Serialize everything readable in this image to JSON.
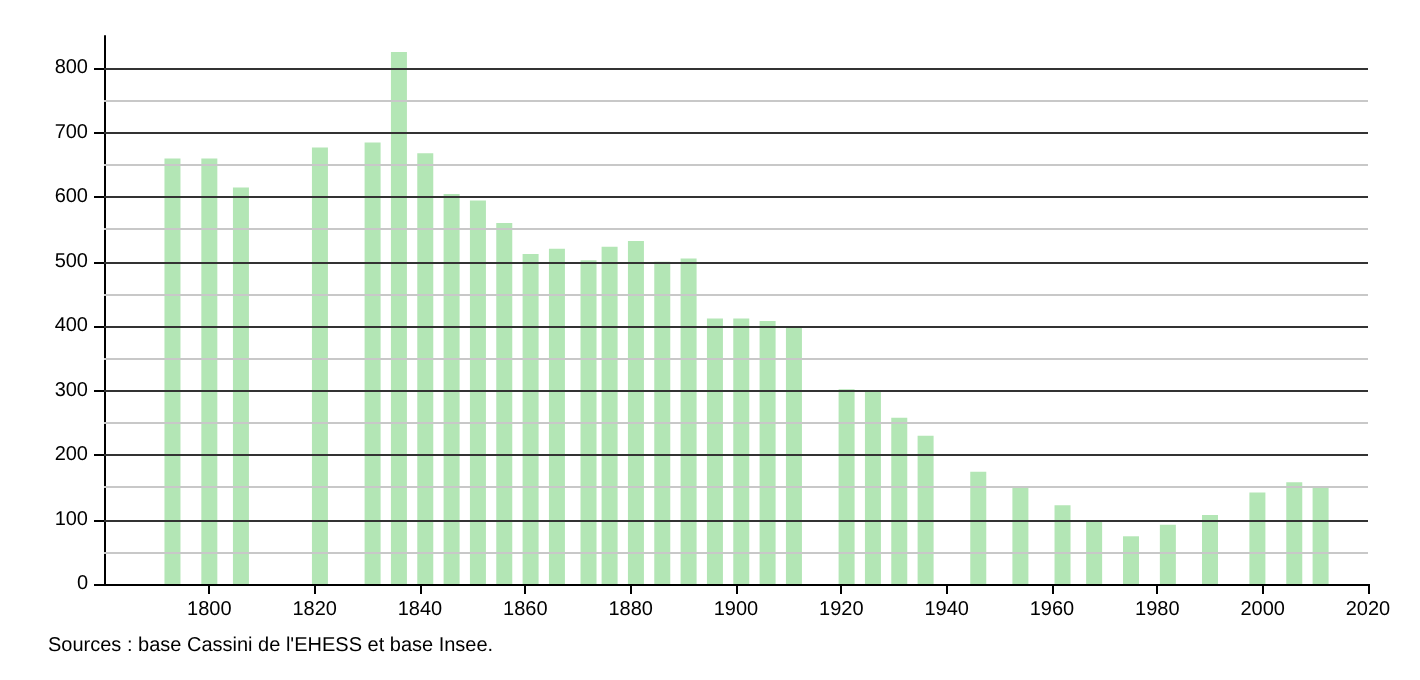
{
  "chart_data": {
    "type": "bar",
    "x": [
      1793,
      1800,
      1806,
      1821,
      1831,
      1836,
      1841,
      1846,
      1851,
      1856,
      1861,
      1866,
      1872,
      1876,
      1881,
      1886,
      1891,
      1896,
      1901,
      1906,
      1911,
      1921,
      1926,
      1931,
      1936,
      1946,
      1954,
      1962,
      1968,
      1975,
      1982,
      1990,
      1999,
      2006,
      2011
    ],
    "values": [
      660,
      660,
      615,
      677,
      685,
      825,
      668,
      605,
      595,
      560,
      512,
      520,
      502,
      523,
      532,
      500,
      505,
      412,
      412,
      408,
      398,
      302,
      300,
      258,
      230,
      174,
      150,
      122,
      97,
      74,
      92,
      107,
      142,
      158,
      150
    ],
    "color": "#b3e6b5",
    "xlim": [
      1780,
      2020
    ],
    "xticks": [
      1800,
      1820,
      1840,
      1860,
      1880,
      1900,
      1920,
      1940,
      1960,
      1980,
      2000,
      2020
    ],
    "ylim": [
      0,
      850
    ],
    "yticks": [
      0,
      100,
      200,
      300,
      400,
      500,
      600,
      700,
      800
    ],
    "grid": "y",
    "annotations": [
      "Sources : base Cassini de l'EHESS et base Insee."
    ]
  }
}
